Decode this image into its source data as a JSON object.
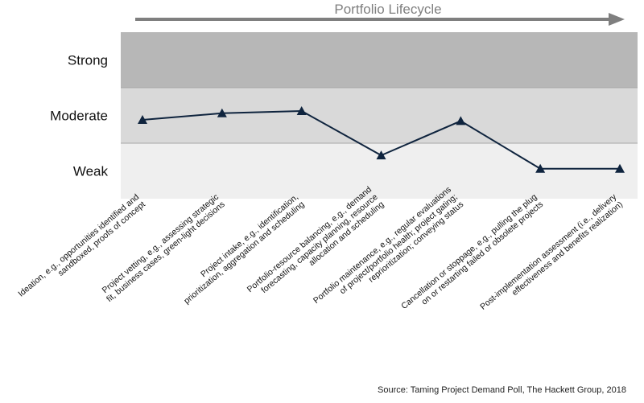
{
  "chart_data": {
    "type": "line",
    "title": "Portfolio Lifecycle",
    "bands": [
      "Strong",
      "Moderate",
      "Weak"
    ],
    "categories": [
      "Ideation, e.g., opportunities identified and sandboxed, proofs of concept",
      "Project vetting, e.g., assessing strategic fit, business cases, green-light decisions",
      "Project intake, e.g., identification, prioritization, aggregation and scheduling",
      "Portfolio-resource balancing, e.g., demand forecasting, capacity planning, resource allocation and scheduling",
      "Portfolio maintenance, e.g., regular evaluations of project/portfolio health; project gating; reprioritization; conveying status",
      "Cancellation or stoppage, e.g., pulling the plug on or restarting failed or obsolete projects",
      "Post-implementation assessment (i.e., delivery effectiveness and benefits realization)"
    ],
    "label_lines": [
      [
        "Ideation, e.g., opportunities identified and",
        "sandboxed, proofs of concept"
      ],
      [
        "Project vetting, e.g., assessing strategic",
        "fit, business cases, green-light decisions"
      ],
      [
        "Project intake, e.g., identification,",
        "prioritization, aggregation and scheduling"
      ],
      [
        "Portfolio-resource balancing, e.g., demand",
        "forecasting, capacity planning, resource",
        "allocation and scheduling"
      ],
      [
        "Portfolio maintenance, e.g., regular evaluations",
        "of project/portfolio health; project gating;",
        "reprioritization; conveying status"
      ],
      [
        "Cancellation or stoppage, e.g., pulling the plug",
        "on or restarting failed or obsolete projects"
      ],
      [
        "Post-implementation assessment (i.e., delivery",
        "effectiveness and benefits realization)"
      ]
    ],
    "values": [
      1.42,
      1.54,
      1.58,
      0.78,
      1.4,
      0.54,
      0.54
    ],
    "ylim": [
      0,
      3
    ],
    "colors": {
      "strong": "#b7b7b7",
      "moderate": "#d9d9d9",
      "weak": "#efefef",
      "line": "#0f243e",
      "arrow": "#7f7f7f"
    }
  },
  "source": "Source: Taming  Project Demand Poll, The Hackett Group, 2018"
}
